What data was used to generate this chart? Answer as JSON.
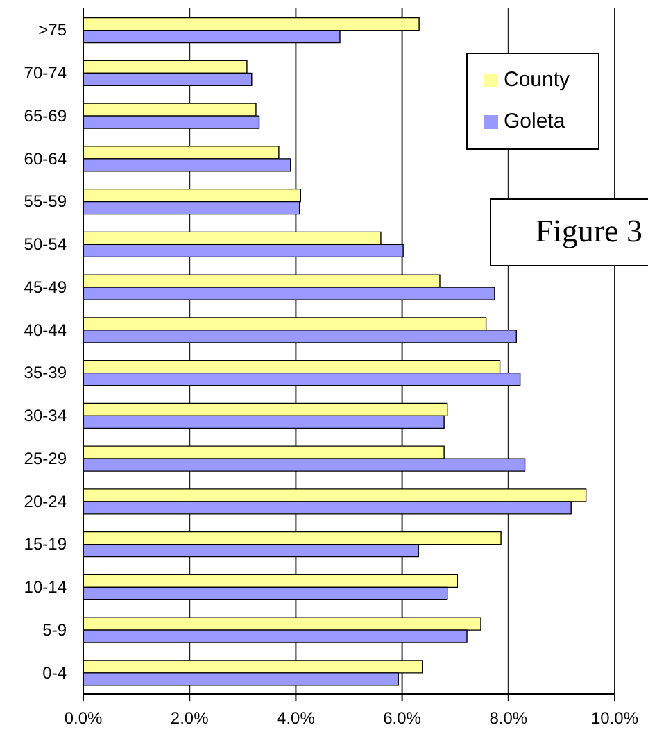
{
  "chart_data": {
    "type": "bar",
    "orientation": "horizontal",
    "categories": [
      ">75",
      "70-74",
      "65-69",
      "60-64",
      "55-59",
      "50-54",
      "45-49",
      "40-44",
      "35-39",
      "30-34",
      "25-29",
      "20-24",
      "15-19",
      "10-14",
      "5-9",
      "0-4"
    ],
    "series": [
      {
        "name": "County",
        "color": "#ffff99",
        "values": [
          6.32,
          3.08,
          3.25,
          3.68,
          4.09,
          5.6,
          6.71,
          7.58,
          7.84,
          6.85,
          6.79,
          9.46,
          7.86,
          7.04,
          7.48,
          6.38
        ]
      },
      {
        "name": "Goleta",
        "color": "#9999ff",
        "values": [
          4.83,
          3.17,
          3.31,
          3.9,
          4.07,
          6.02,
          7.74,
          8.15,
          8.22,
          6.79,
          8.31,
          9.18,
          6.31,
          6.85,
          7.22,
          5.93
        ]
      }
    ],
    "xlim": [
      0,
      10
    ],
    "xticks": [
      {
        "value": 0,
        "label": "0.0%"
      },
      {
        "value": 2,
        "label": "2.0%"
      },
      {
        "value": 4,
        "label": "4.0%"
      },
      {
        "value": 6,
        "label": "6.0%"
      },
      {
        "value": 8,
        "label": "8.0%"
      },
      {
        "value": 10,
        "label": "10.0%"
      }
    ],
    "grid": "x",
    "legend": "top right",
    "annotations": [
      "Figure 3"
    ]
  }
}
